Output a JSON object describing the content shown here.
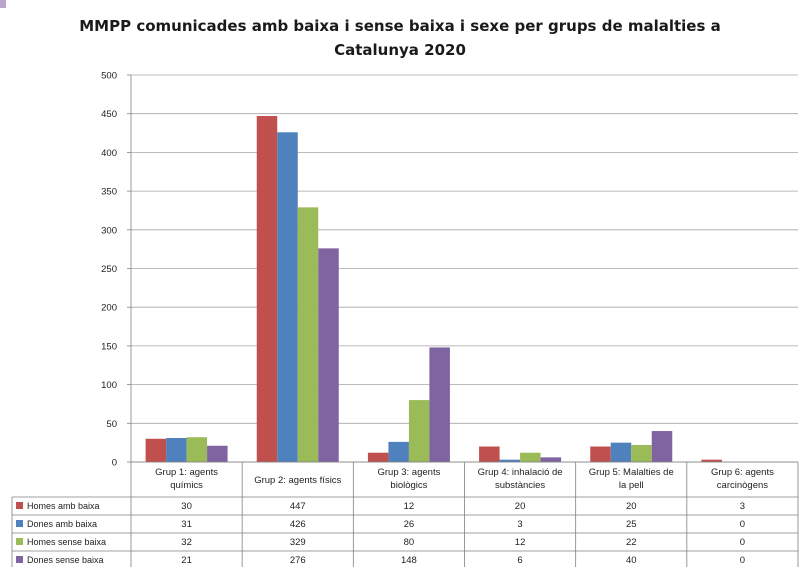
{
  "chart_data": {
    "type": "bar",
    "title": "MMPP comunicades amb baixa i sense baixa i sexe per grups de malalties a Catalunya 2020",
    "title_lines": [
      "MMPP comunicades amb baixa i sense baixa i sexe per grups de malalties a",
      "Catalunya 2020"
    ],
    "categories": [
      [
        "Grup 1: agents",
        "químics"
      ],
      [
        "Grup 2: agents físics"
      ],
      [
        "Grup 3: agents",
        "biològics"
      ],
      [
        "Grup 4: inhalació de",
        "substàncies"
      ],
      [
        "Grup 5: Malalties de",
        "la pell"
      ],
      [
        "Grup 6: agents",
        "carcinògens"
      ]
    ],
    "series": [
      {
        "name": "Homes amb baixa",
        "color": "#c0504d",
        "values": [
          30,
          447,
          12,
          20,
          20,
          3
        ]
      },
      {
        "name": "Dones amb baixa",
        "color": "#4f81bd",
        "values": [
          31,
          426,
          26,
          3,
          25,
          0
        ]
      },
      {
        "name": "Homes sense baixa",
        "color": "#9bbb59",
        "values": [
          32,
          329,
          80,
          12,
          22,
          0
        ]
      },
      {
        "name": "Dones sense baixa",
        "color": "#8064a2",
        "values": [
          21,
          276,
          148,
          6,
          40,
          0
        ]
      }
    ],
    "ylim": [
      0,
      500
    ],
    "yticks": [
      0,
      50,
      100,
      150,
      200,
      250,
      300,
      350,
      400,
      450,
      500
    ],
    "grid": true,
    "legend": "data-table-below"
  }
}
